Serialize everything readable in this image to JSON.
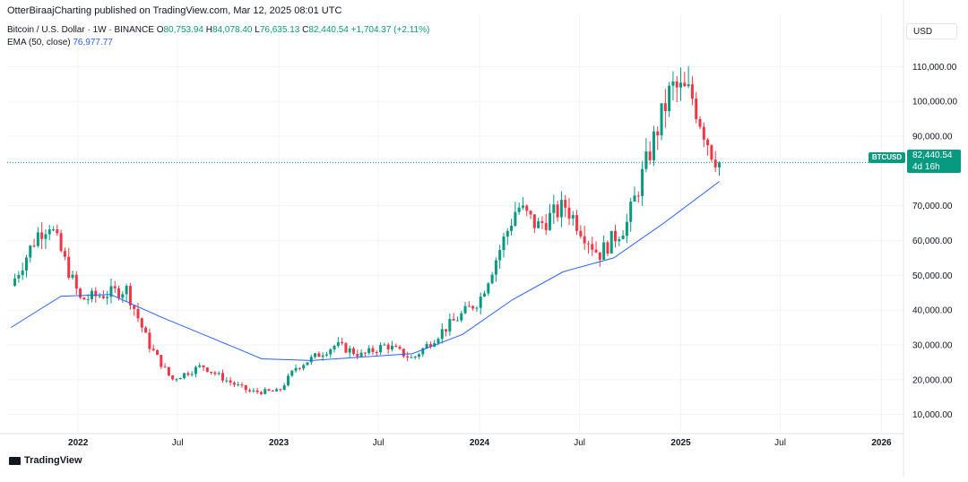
{
  "header": {
    "publisher": "OtterBiraajCharting published on TradingView.com, Mar 12, 2025 08:01 UTC",
    "symbol_line": "Bitcoin / U.S. Dollar · 1W · BINANCE",
    "ohlc": {
      "o_label": "O",
      "o_value": "80,753.94",
      "h_label": "H",
      "h_value": "84,078.40",
      "l_label": "L",
      "l_value": "76,635.13",
      "c_label": "C",
      "c_value": "82,440.54",
      "change": "+1,704.37 (+2.11%)"
    },
    "ema_label": "EMA (50, close)",
    "ema_value": "76,977.77"
  },
  "currency": "USD",
  "price_tag": {
    "symbol": "BTCUSD",
    "price": "82,440.54",
    "countdown": "4d 16h"
  },
  "branding": {
    "logo_text": "TradingView"
  },
  "colors": {
    "up": "#089981",
    "down": "#f23645",
    "ema": "#2962ff",
    "grid": "#f0f3fa",
    "text": "#131722"
  },
  "chart_data": {
    "type": "candlestick",
    "interval": "1W",
    "x_ticks": [
      "2022",
      "Jul",
      "2023",
      "Jul",
      "2024",
      "Jul",
      "2025",
      "Jul",
      "2026"
    ],
    "y_ticks": [
      "10,000.00",
      "20,000.00",
      "30,000.00",
      "40,000.00",
      "50,000.00",
      "60,000.00",
      "70,000.00",
      "90,000.00",
      "100,000.00",
      "110,000.00"
    ],
    "ylim": [
      5000,
      115000
    ],
    "last_price": 82440.54,
    "series": [
      {
        "name": "BTCUSD",
        "type": "candlestick",
        "summary_closes": [
          [
            "2021-09-01",
            47000
          ],
          [
            "2021-10-20",
            62000
          ],
          [
            "2021-11-10",
            65000
          ],
          [
            "2022-01-05",
            43000
          ],
          [
            "2022-03-30",
            46000
          ],
          [
            "2022-05-10",
            30000
          ],
          [
            "2022-06-20",
            20000
          ],
          [
            "2022-08-15",
            24000
          ],
          [
            "2022-10-01",
            19500
          ],
          [
            "2022-11-10",
            16500
          ],
          [
            "2023-01-01",
            16600
          ],
          [
            "2023-02-01",
            23500
          ],
          [
            "2023-04-15",
            30000
          ],
          [
            "2023-06-01",
            27000
          ],
          [
            "2023-07-15",
            30000
          ],
          [
            "2023-09-01",
            26000
          ],
          [
            "2023-10-25",
            34000
          ],
          [
            "2024-01-01",
            43000
          ],
          [
            "2024-03-10",
            70000
          ],
          [
            "2024-04-15",
            64000
          ],
          [
            "2024-06-05",
            70000
          ],
          [
            "2024-08-05",
            56000
          ],
          [
            "2024-09-25",
            65000
          ],
          [
            "2024-11-15",
            90000
          ],
          [
            "2024-12-15",
            104000
          ],
          [
            "2025-01-20",
            102000
          ],
          [
            "2025-02-25",
            86000
          ],
          [
            "2025-03-12",
            82440
          ]
        ]
      },
      {
        "name": "EMA (50, close)",
        "type": "line",
        "points": [
          [
            "2021-09-01",
            35000
          ],
          [
            "2021-12-01",
            44000
          ],
          [
            "2022-03-01",
            44500
          ],
          [
            "2022-06-01",
            38000
          ],
          [
            "2022-09-01",
            32000
          ],
          [
            "2022-12-01",
            26000
          ],
          [
            "2023-03-01",
            25500
          ],
          [
            "2023-06-01",
            26500
          ],
          [
            "2023-09-01",
            27500
          ],
          [
            "2023-12-01",
            33000
          ],
          [
            "2024-03-01",
            43000
          ],
          [
            "2024-06-01",
            51000
          ],
          [
            "2024-09-01",
            55000
          ],
          [
            "2024-12-01",
            65000
          ],
          [
            "2025-03-12",
            76977.77
          ]
        ]
      }
    ]
  }
}
